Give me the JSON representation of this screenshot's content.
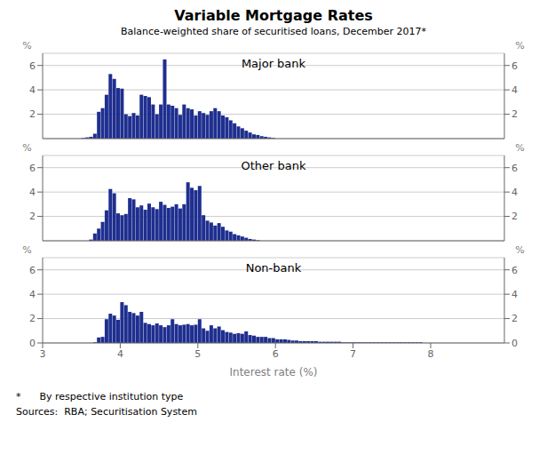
{
  "title": "Variable Mortgage Rates",
  "subtitle": "Balance-weighted share of securitised loans, December 2017*",
  "annotations": [
    "*      By respective institution type",
    "Sources:  RBA; Securitisation System"
  ],
  "chart_data": [
    {
      "type": "bar",
      "title": "Major bank",
      "color": "#1f2f8f",
      "grid": true,
      "tick_labels": "y",
      "xlim": [
        3.0,
        8.95
      ],
      "ylim": [
        0,
        7
      ],
      "yticks": [
        2,
        4,
        6
      ],
      "y2lim": [
        0,
        7
      ],
      "y2ticks": [
        2,
        4,
        6
      ],
      "ylabel": "%",
      "y2label": "%",
      "x": [
        3.5,
        3.55,
        3.6,
        3.65,
        3.7,
        3.75,
        3.8,
        3.85,
        3.9,
        3.95,
        4.0,
        4.05,
        4.1,
        4.15,
        4.2,
        4.25,
        4.3,
        4.35,
        4.4,
        4.45,
        4.5,
        4.55,
        4.6,
        4.65,
        4.7,
        4.75,
        4.8,
        4.85,
        4.9,
        4.95,
        5.0,
        5.05,
        5.1,
        5.15,
        5.2,
        5.25,
        5.3,
        5.35,
        5.4,
        5.45,
        5.5,
        5.55,
        5.6,
        5.65,
        5.7,
        5.75,
        5.8,
        5.85,
        5.9,
        5.95,
        6.0,
        6.05,
        6.1,
        6.15,
        6.2
      ],
      "values": [
        0.05,
        0.1,
        0.15,
        0.4,
        2.2,
        2.5,
        3.6,
        5.3,
        4.9,
        4.15,
        4.1,
        2.0,
        1.85,
        2.1,
        1.9,
        3.6,
        3.5,
        3.4,
        2.8,
        2.0,
        2.8,
        6.5,
        2.8,
        2.7,
        2.5,
        1.95,
        2.8,
        2.5,
        2.4,
        1.9,
        2.25,
        2.1,
        1.95,
        2.25,
        2.5,
        2.25,
        1.9,
        1.75,
        1.5,
        1.25,
        1.0,
        0.85,
        0.65,
        0.5,
        0.35,
        0.3,
        0.2,
        0.15,
        0.1,
        0.05,
        0.0,
        0.0,
        0.0,
        0.0,
        0.0
      ]
    },
    {
      "type": "bar",
      "title": "Other bank",
      "color": "#1f2f8f",
      "grid": true,
      "tick_labels": "y",
      "xlim": [
        3.0,
        8.95
      ],
      "ylim": [
        0,
        7
      ],
      "yticks": [
        2,
        4,
        6
      ],
      "y2lim": [
        0,
        7
      ],
      "y2ticks": [
        2,
        4,
        6
      ],
      "ylabel": "%",
      "y2label": "%",
      "x": [
        3.5,
        3.55,
        3.6,
        3.65,
        3.7,
        3.75,
        3.8,
        3.85,
        3.9,
        3.95,
        4.0,
        4.05,
        4.1,
        4.15,
        4.2,
        4.25,
        4.3,
        4.35,
        4.4,
        4.45,
        4.5,
        4.55,
        4.6,
        4.65,
        4.7,
        4.75,
        4.8,
        4.85,
        4.9,
        4.95,
        5.0,
        5.05,
        5.1,
        5.15,
        5.2,
        5.25,
        5.3,
        5.35,
        5.4,
        5.45,
        5.5,
        5.55,
        5.6,
        5.65,
        5.7,
        5.75,
        5.8,
        5.85,
        5.9,
        5.95,
        6.0,
        6.05,
        6.1,
        6.15,
        6.2
      ],
      "values": [
        0.0,
        0.0,
        0.1,
        0.6,
        1.0,
        1.55,
        2.5,
        4.25,
        3.9,
        2.25,
        2.1,
        2.2,
        3.5,
        3.4,
        2.75,
        2.9,
        2.55,
        3.05,
        2.75,
        2.6,
        3.2,
        2.95,
        2.7,
        2.8,
        3.0,
        2.65,
        3.0,
        4.8,
        4.35,
        4.15,
        4.5,
        2.1,
        1.65,
        1.5,
        1.25,
        1.45,
        1.15,
        0.85,
        0.75,
        0.55,
        0.45,
        0.35,
        0.25,
        0.15,
        0.1,
        0.05,
        0.0,
        0.0,
        0.0,
        0.0,
        0.0,
        0.0,
        0.0,
        0.0,
        0.0
      ]
    },
    {
      "type": "bar",
      "title": "Non-bank",
      "color": "#1f2f8f",
      "grid": true,
      "xlabel": "Interest rate (%)",
      "xlim": [
        3.0,
        8.95
      ],
      "xticks": [
        3,
        4,
        5,
        6,
        7,
        8
      ],
      "ylim": [
        0,
        7
      ],
      "yticks": [
        0,
        2,
        4,
        6
      ],
      "y2lim": [
        0,
        7
      ],
      "y2ticks": [
        0,
        2,
        4,
        6
      ],
      "ylabel": "%",
      "y2label": "%",
      "x": [
        3.5,
        3.55,
        3.6,
        3.65,
        3.7,
        3.75,
        3.8,
        3.85,
        3.9,
        3.95,
        4.0,
        4.05,
        4.1,
        4.15,
        4.2,
        4.25,
        4.3,
        4.35,
        4.4,
        4.45,
        4.5,
        4.55,
        4.6,
        4.65,
        4.7,
        4.75,
        4.8,
        4.85,
        4.9,
        4.95,
        5.0,
        5.05,
        5.1,
        5.15,
        5.2,
        5.25,
        5.3,
        5.35,
        5.4,
        5.45,
        5.5,
        5.55,
        5.6,
        5.65,
        5.7,
        5.75,
        5.8,
        5.85,
        5.9,
        5.95,
        6.0,
        6.05,
        6.1,
        6.15,
        6.2,
        6.25,
        6.3,
        6.35,
        6.4,
        6.45,
        6.5,
        6.55,
        6.6,
        6.65,
        6.7,
        6.75,
        6.8,
        6.85,
        6.9,
        6.95,
        7.0,
        7.05,
        7.1,
        7.15,
        7.2,
        7.25,
        7.3,
        7.35,
        7.4,
        7.45,
        7.5,
        7.55,
        7.6,
        7.65,
        7.7,
        7.75,
        7.8,
        7.85,
        7.9,
        7.95,
        8.0,
        8.05,
        8.1,
        8.15,
        8.2,
        8.25,
        8.3,
        8.35,
        8.4,
        8.45,
        8.5,
        8.55,
        8.6,
        8.65,
        8.7,
        8.75,
        8.8,
        8.85,
        8.9
      ],
      "values": [
        0.0,
        0.0,
        0.0,
        0.05,
        0.45,
        0.5,
        1.95,
        2.4,
        2.25,
        1.9,
        3.35,
        3.1,
        2.55,
        2.45,
        2.25,
        2.55,
        1.65,
        1.55,
        1.45,
        1.6,
        1.45,
        1.3,
        1.45,
        1.95,
        1.55,
        1.45,
        1.5,
        1.55,
        1.45,
        1.5,
        1.95,
        1.2,
        1.0,
        1.45,
        1.2,
        1.35,
        1.05,
        0.9,
        0.85,
        0.75,
        0.8,
        0.75,
        0.95,
        0.65,
        0.6,
        0.5,
        0.5,
        0.5,
        0.4,
        0.4,
        0.3,
        0.3,
        0.3,
        0.25,
        0.2,
        0.2,
        0.15,
        0.15,
        0.15,
        0.15,
        0.15,
        0.1,
        0.1,
        0.1,
        0.1,
        0.1,
        0.1,
        0.05,
        0.05,
        0.05,
        0.05,
        0.05,
        0.05,
        0.05,
        0.05,
        0.05,
        0.05,
        0.05,
        0.05,
        0.05,
        0.05,
        0.05,
        0.05,
        0.05,
        0.05,
        0.05,
        0.05,
        0.05,
        0.0,
        0.0,
        0.0,
        0.0,
        0.0,
        0.0,
        0.0,
        0.0,
        0.0,
        0.0,
        0.0,
        0.0,
        0.0,
        0.0,
        0.0,
        0.0,
        0.0,
        0.0,
        0.0,
        0.0,
        0.0
      ]
    }
  ]
}
